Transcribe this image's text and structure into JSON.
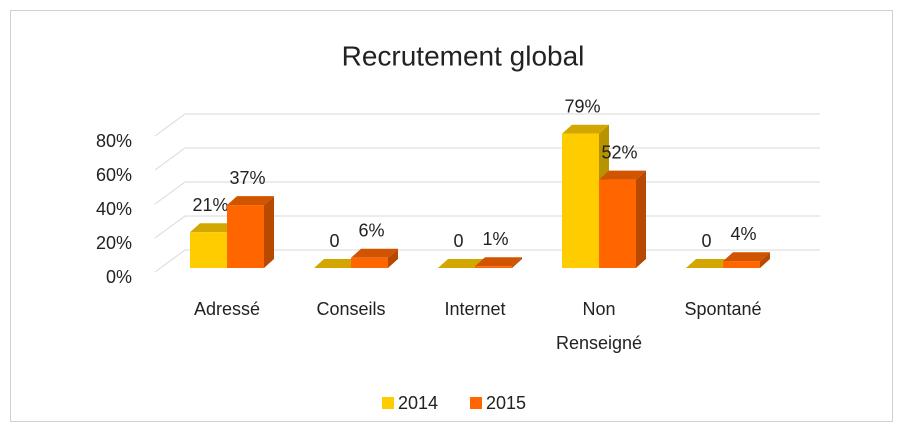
{
  "chart_data": {
    "type": "bar3d",
    "title": "Recrutement global",
    "categories": [
      "Adressé",
      "Conseils",
      "Internet",
      "Non Renseigné",
      "Spontané"
    ],
    "series": [
      {
        "name": "2014",
        "color": "#FFCC00",
        "values": [
          21,
          0,
          0,
          79,
          0
        ],
        "value_labels": [
          "21%",
          "0",
          "0",
          "79%",
          "0"
        ]
      },
      {
        "name": "2015",
        "color": "#FF6600",
        "values": [
          37,
          6,
          1,
          52,
          4
        ],
        "value_labels": [
          "37%",
          "6%",
          "1%",
          "52%",
          "4%"
        ]
      }
    ],
    "ylim": [
      0,
      80
    ],
    "yticks": [
      {
        "value": 0,
        "label": "0%"
      },
      {
        "value": 20,
        "label": "20%"
      },
      {
        "value": 40,
        "label": "40%"
      },
      {
        "value": 60,
        "label": "60%"
      },
      {
        "value": 80,
        "label": "80%"
      }
    ],
    "grid": true,
    "legend": "bottom"
  }
}
